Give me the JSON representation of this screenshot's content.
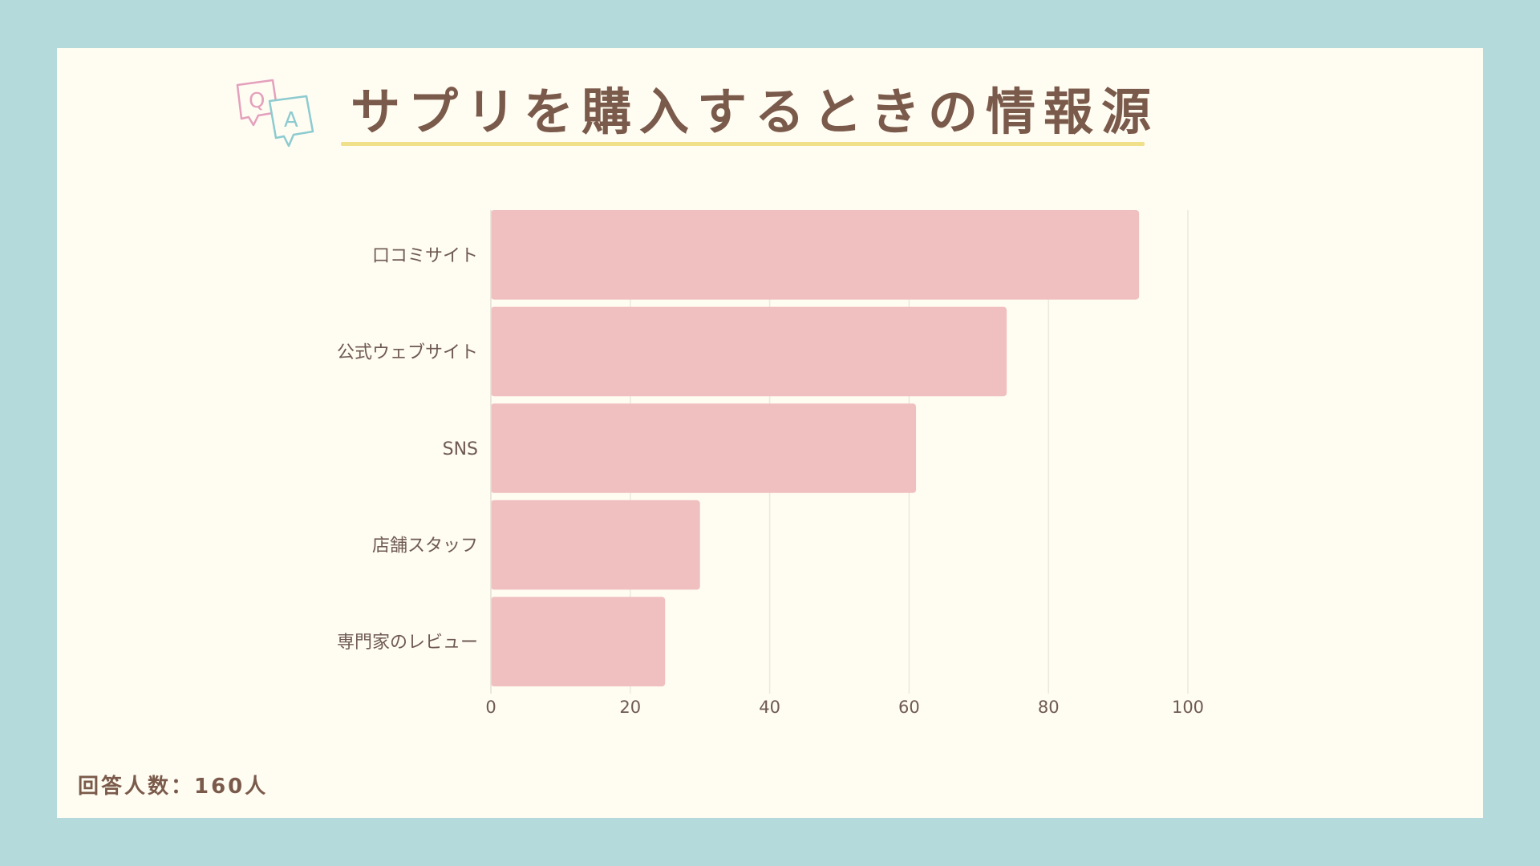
{
  "title": "サプリを購入するときの情報源",
  "footnote": "回答人数：160人",
  "qa_icon": {
    "q": "Q",
    "a": "A",
    "q_color": "#e4a0bc",
    "a_color": "#8ccbd0"
  },
  "colors": {
    "bar": "#f0c0c0",
    "text": "#7a5a4a",
    "grid": "#ece8de",
    "accent_line": "#f0e08a",
    "frame": "#b4dadc",
    "card": "#fffcf2"
  },
  "chart_data": {
    "type": "bar",
    "orientation": "horizontal",
    "categories": [
      "口コミサイト",
      "公式ウェブサイト",
      "SNS",
      "店舗スタッフ",
      "専門家のレビュー"
    ],
    "values": [
      93,
      74,
      61,
      30,
      25
    ],
    "xlim": [
      0,
      100
    ],
    "xticks": [
      0,
      20,
      40,
      60,
      80,
      100
    ],
    "grid": "vertical"
  }
}
